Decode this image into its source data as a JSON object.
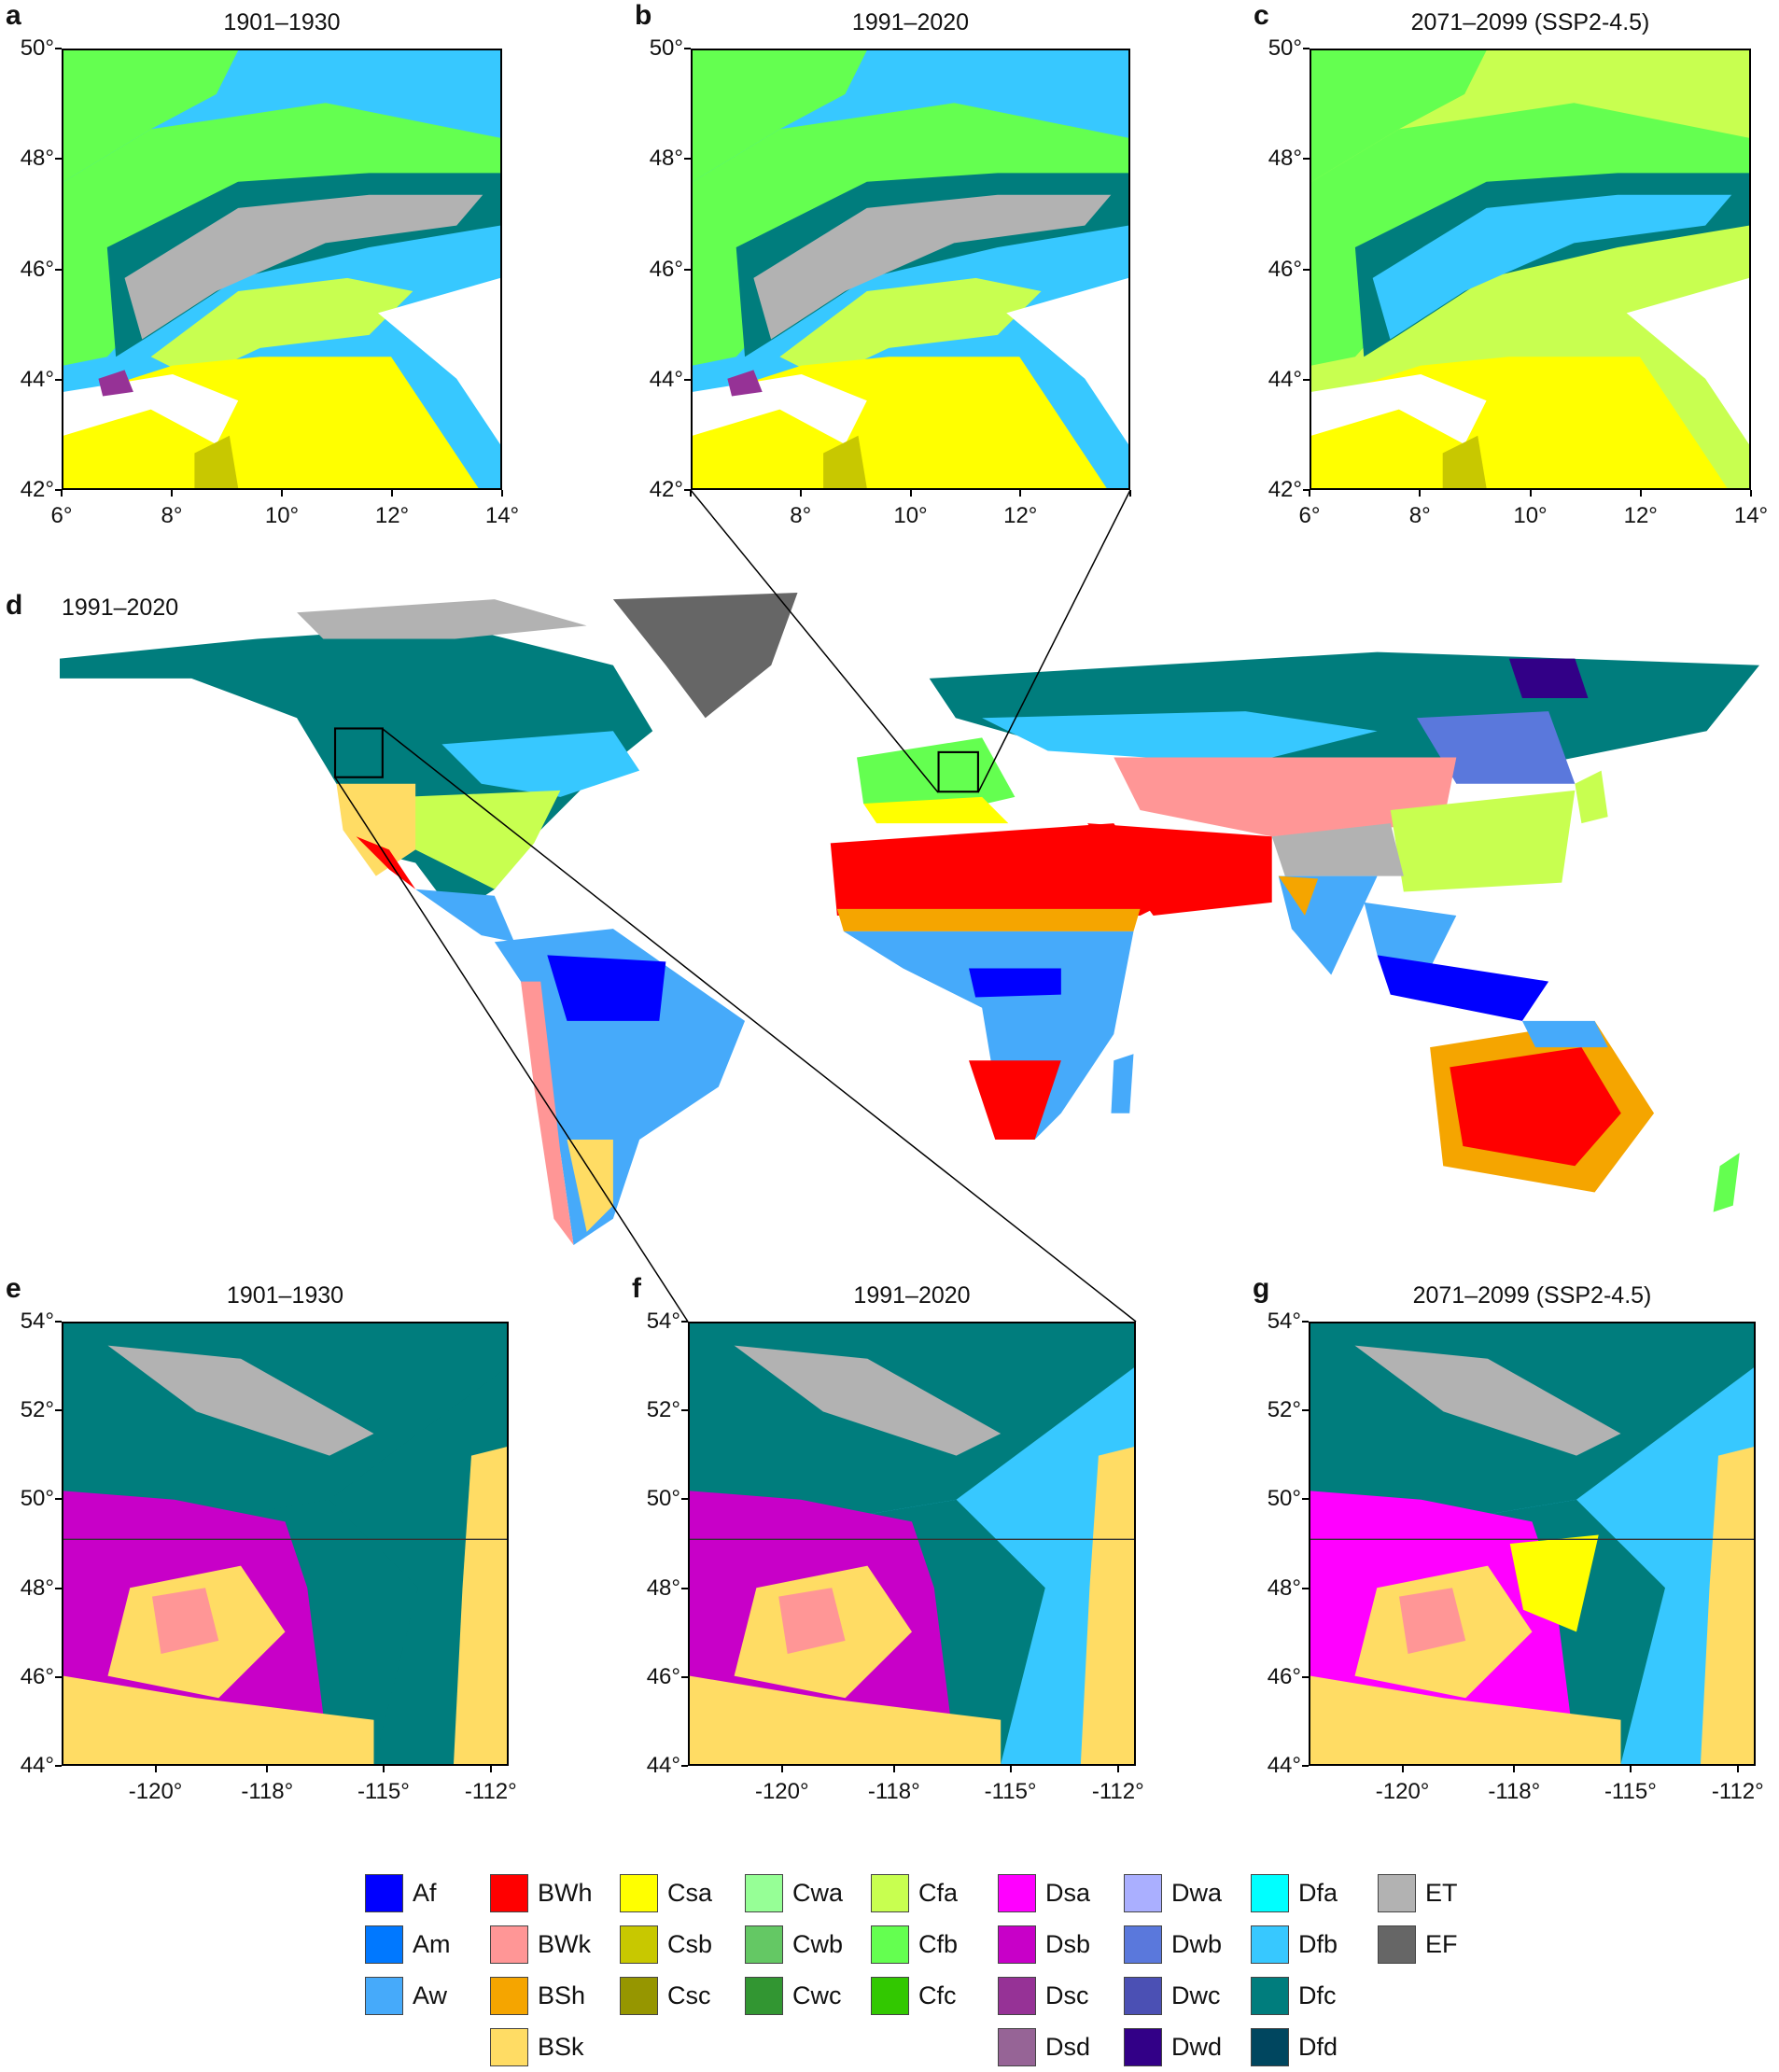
{
  "panels": [
    {
      "id": "a",
      "letter": "a",
      "title": "1901–1930",
      "region": "alps",
      "lat_ticks": [
        "50°",
        "48°",
        "46°",
        "44°",
        "42°"
      ],
      "lon_ticks": [
        "6°",
        "8°",
        "10°",
        "12°",
        "14°"
      ]
    },
    {
      "id": "b",
      "letter": "b",
      "title": "1991–2020",
      "region": "alps",
      "lat_ticks": [
        "50°",
        "48°",
        "46°",
        "44°",
        "42°"
      ],
      "lon_ticks": [
        "",
        "8°",
        "10°",
        "12°",
        ""
      ]
    },
    {
      "id": "c",
      "letter": "c",
      "title": "2071–2099 (SSP2-4.5)",
      "region": "alps",
      "lat_ticks": [
        "50°",
        "48°",
        "46°",
        "44°",
        "42°"
      ],
      "lon_ticks": [
        "6°",
        "8°",
        "10°",
        "12°",
        "14°"
      ]
    },
    {
      "id": "e",
      "letter": "e",
      "title": "1901–1930",
      "region": "rockies",
      "lat_ticks": [
        "54°",
        "52°",
        "50°",
        "48°",
        "46°",
        "44°"
      ],
      "lon_ticks": [
        "-120°",
        "-118°",
        "-115°",
        "-112°"
      ]
    },
    {
      "id": "f",
      "letter": "f",
      "title": "1991–2020",
      "region": "rockies",
      "lat_ticks": [
        "54°",
        "52°",
        "50°",
        "48°",
        "46°",
        "44°"
      ],
      "lon_ticks": [
        "-120°",
        "-118°",
        "-115°",
        "-112°"
      ]
    },
    {
      "id": "g",
      "letter": "g",
      "title": "2071–2099 (SSP2-4.5)",
      "region": "rockies",
      "lat_ticks": [
        "54°",
        "52°",
        "50°",
        "48°",
        "46°",
        "44°"
      ],
      "lon_ticks": [
        "-120°",
        "-118°",
        "-115°",
        "-112°"
      ]
    }
  ],
  "world": {
    "letter": "d",
    "title": "1991–2020"
  },
  "legend": [
    {
      "code": "Af",
      "color": "#0000ff"
    },
    {
      "code": "Am",
      "color": "#0078ff"
    },
    {
      "code": "Aw",
      "color": "#46aafa"
    },
    {
      "code": "BWh",
      "color": "#ff0000"
    },
    {
      "code": "BWk",
      "color": "#ff9696"
    },
    {
      "code": "BSh",
      "color": "#f5a500"
    },
    {
      "code": "BSk",
      "color": "#ffdc64"
    },
    {
      "code": "Csa",
      "color": "#ffff00"
    },
    {
      "code": "Csb",
      "color": "#c8c800"
    },
    {
      "code": "Csc",
      "color": "#969600"
    },
    {
      "code": "Cwa",
      "color": "#96ff96"
    },
    {
      "code": "Cwb",
      "color": "#64c864"
    },
    {
      "code": "Cwc",
      "color": "#329632"
    },
    {
      "code": "Cfa",
      "color": "#c8ff50"
    },
    {
      "code": "Cfb",
      "color": "#64ff50"
    },
    {
      "code": "Cfc",
      "color": "#32c800"
    },
    {
      "code": "Dsa",
      "color": "#ff00ff"
    },
    {
      "code": "Dsb",
      "color": "#c800c8"
    },
    {
      "code": "Dsc",
      "color": "#963296"
    },
    {
      "code": "Dsd",
      "color": "#966496"
    },
    {
      "code": "Dwa",
      "color": "#aaafff"
    },
    {
      "code": "Dwb",
      "color": "#5a78dc"
    },
    {
      "code": "Dwc",
      "color": "#4b50b4"
    },
    {
      "code": "Dwd",
      "color": "#320087"
    },
    {
      "code": "Dfa",
      "color": "#00ffff"
    },
    {
      "code": "Dfb",
      "color": "#37c8ff"
    },
    {
      "code": "Dfc",
      "color": "#007d7d"
    },
    {
      "code": "Dfd",
      "color": "#00465f"
    },
    {
      "code": "ET",
      "color": "#b2b2b2"
    },
    {
      "code": "EF",
      "color": "#666666"
    }
  ]
}
